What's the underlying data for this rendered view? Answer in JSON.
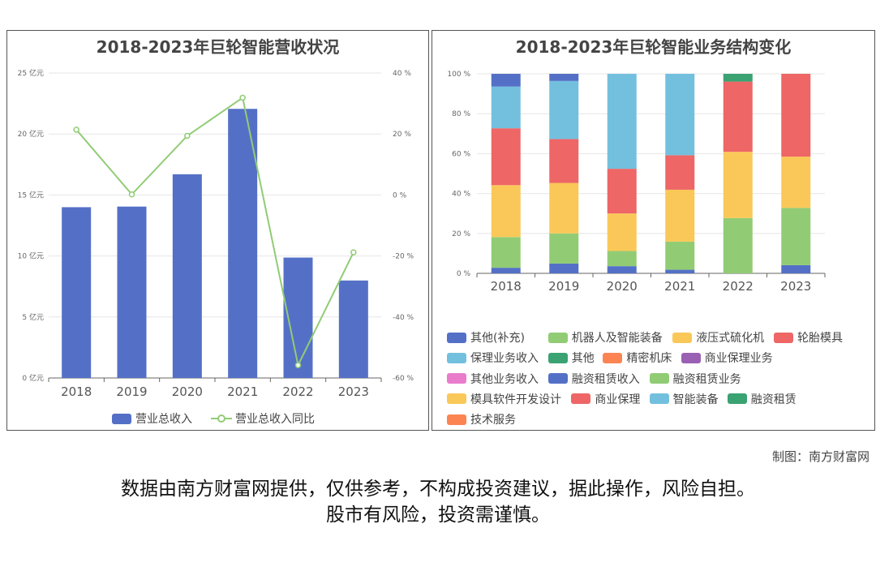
{
  "chart_data": [
    {
      "type": "bar",
      "title": "2018-2023年巨轮智能营收状况",
      "categories": [
        "2018",
        "2019",
        "2020",
        "2021",
        "2022",
        "2023"
      ],
      "series": [
        {
          "name": "营业总收入",
          "kind": "bar",
          "axis": "left",
          "color": "#5470c6",
          "values": [
            14.0,
            14.05,
            16.7,
            22.06,
            9.87,
            7.99
          ]
        },
        {
          "name": "营业总收入同比",
          "kind": "line",
          "axis": "right",
          "color": "#91cc75",
          "values": [
            21.4,
            0.2,
            19.4,
            31.9,
            -55.8,
            -18.8
          ]
        }
      ],
      "ylim_left": [
        0,
        25
      ],
      "yticks_left": [
        "0 亿元",
        "5 亿元",
        "10 亿元",
        "15 亿元",
        "20 亿元",
        "25 亿元"
      ],
      "ylim_right": [
        -60,
        40
      ],
      "yticks_right": [
        "-60 %",
        "-40 %",
        "-20 %",
        "0 %",
        "20 %",
        "40 %"
      ],
      "legend_position": "bottom",
      "grid": true
    },
    {
      "type": "bar",
      "stacked": true,
      "title": "2018-2023年巨轮智能业务结构变化",
      "categories": [
        "2018",
        "2019",
        "2020",
        "2021",
        "2022",
        "2023"
      ],
      "ylim": [
        0,
        100
      ],
      "yticks": [
        "0 %",
        "20 %",
        "40 %",
        "60 %",
        "80 %",
        "100 %"
      ],
      "series": [
        {
          "name": "其他(补充)",
          "color": "#5470c6",
          "values": [
            2.8,
            4.9,
            3.6,
            1.8,
            0,
            4.1
          ]
        },
        {
          "name": "机器人及智能装备",
          "color": "#91cc75",
          "values": [
            15.4,
            15.1,
            7.6,
            14.1,
            27.7,
            28.7
          ]
        },
        {
          "name": "液压式硫化机",
          "color": "#fac858",
          "values": [
            26.0,
            25.3,
            18.8,
            26.0,
            33.2,
            25.7
          ]
        },
        {
          "name": "轮胎模具",
          "color": "#ee6666",
          "values": [
            28.5,
            22.0,
            22.4,
            17.3,
            35.2,
            41.5
          ]
        },
        {
          "name": "保理业务收入",
          "color": "#73c0de",
          "values": [
            20.9,
            29.1,
            47.6,
            40.8,
            0,
            0
          ]
        },
        {
          "name": "其他",
          "color": "#3ba272",
          "values": [
            0,
            0,
            0,
            0,
            0,
            0
          ]
        },
        {
          "name": "精密机床",
          "color": "#fc8452",
          "values": [
            0,
            0,
            0,
            0,
            0,
            0
          ]
        },
        {
          "name": "商业保理业务",
          "color": "#9a60b4",
          "values": [
            0,
            0,
            0,
            0,
            0,
            0
          ]
        },
        {
          "name": "其他业务收入",
          "color": "#ea7ccc",
          "values": [
            0,
            0,
            0,
            0,
            0,
            0
          ]
        },
        {
          "name": "融资租赁收入",
          "color": "#5470c6",
          "values": [
            6.4,
            3.6,
            0,
            0,
            0,
            0
          ]
        },
        {
          "name": "融资租赁业务",
          "color": "#91cc75",
          "values": [
            0,
            0,
            0,
            0,
            0,
            0
          ]
        },
        {
          "name": "模具软件开发设计",
          "color": "#fac858",
          "values": [
            0,
            0,
            0,
            0,
            0,
            0
          ]
        },
        {
          "name": "商业保理",
          "color": "#ee6666",
          "values": [
            0,
            0,
            0,
            0,
            0,
            0
          ]
        },
        {
          "name": "智能装备",
          "color": "#73c0de",
          "values": [
            0,
            0,
            0,
            0,
            0,
            0
          ]
        },
        {
          "name": "融资租赁",
          "color": "#3ba272",
          "values": [
            0,
            0,
            0,
            0,
            3.9,
            0
          ]
        },
        {
          "name": "技术服务",
          "color": "#fc8452",
          "values": [
            0,
            0,
            0,
            0,
            0,
            0
          ]
        }
      ],
      "legend_position": "bottom",
      "grid": true
    }
  ],
  "credit": "制图：南方财富网",
  "disclaimer": {
    "line1": "数据由南方财富网提供，仅供参考，不构成投资建议，据此操作，风险自担。",
    "line2": "股市有风险，投资需谨慎。"
  }
}
